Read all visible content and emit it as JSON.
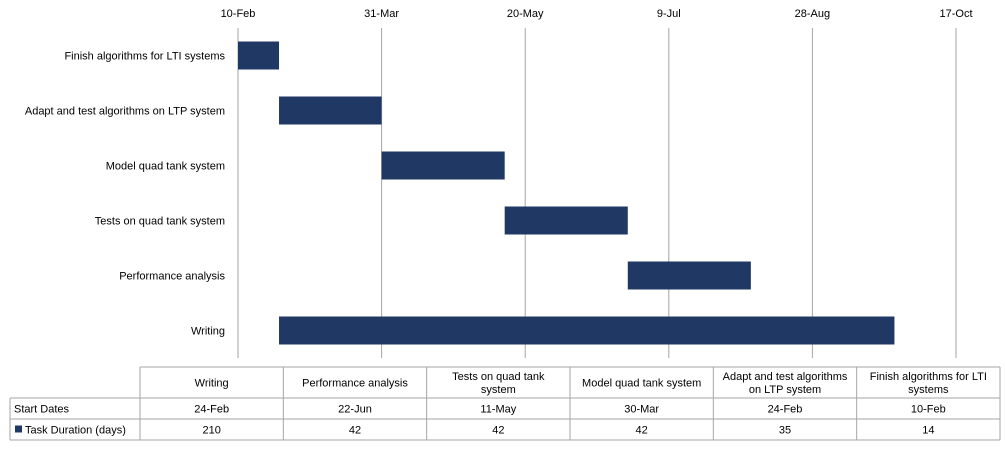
{
  "chart_data": {
    "type": "bar",
    "orientation": "horizontal",
    "stacked_with_hidden_start": true,
    "xaxis": {
      "position": "top",
      "type": "date",
      "ticks": [
        "10-Feb",
        "31-Mar",
        "20-May",
        "9-Jul",
        "28-Aug",
        "17-Oct"
      ],
      "tick_interval_days": 49,
      "range_days": [
        0,
        245
      ],
      "grid": true
    },
    "categories": [
      "Finish algorithms for LTI systems",
      "Adapt and test algorithms on LTP system",
      "Model quad tank system",
      "Tests on quad tank system",
      "Performance analysis",
      "Writing"
    ],
    "start_dates": [
      "10-Feb",
      "24-Feb",
      "30-Mar",
      "11-May",
      "22-Jun",
      "24-Feb"
    ],
    "start_offsets_days": [
      0,
      14,
      49,
      91,
      133,
      14
    ],
    "series": [
      {
        "name": "Task Duration (days)",
        "values": [
          14,
          35,
          42,
          42,
          42,
          210
        ],
        "color": "#1f3864"
      }
    ],
    "data_table": {
      "columns": [
        "Writing",
        "Performance analysis",
        "Tests on quad tank system",
        "Model quad tank system",
        "Adapt and test algorithms on LTP system",
        "Finish algorithms for LTI systems"
      ],
      "column_lines": [
        [
          "Writing"
        ],
        [
          "Performance analysis"
        ],
        [
          "Tests on quad tank",
          "system"
        ],
        [
          "Model quad tank system"
        ],
        [
          "Adapt and test algorithms",
          "on LTP system"
        ],
        [
          "Finish algorithms for LTI",
          "systems"
        ]
      ],
      "rows": [
        {
          "label": "Start Dates",
          "values": [
            "24-Feb",
            "22-Jun",
            "11-May",
            "30-Mar",
            "24-Feb",
            "10-Feb"
          ]
        },
        {
          "label": "Task Duration (days)",
          "values": [
            "210",
            "42",
            "42",
            "42",
            "35",
            "14"
          ],
          "legend_color": "#1f3864"
        }
      ]
    }
  }
}
